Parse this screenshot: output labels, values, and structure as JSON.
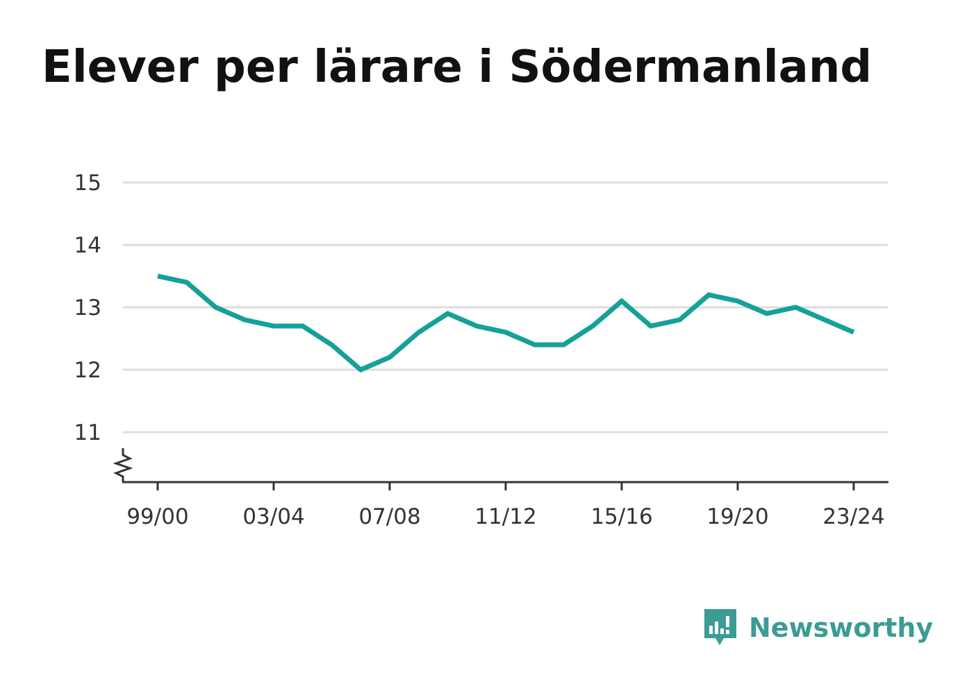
{
  "title": "Elever per lärare i Södermanland",
  "brand": {
    "name": "Newsworthy",
    "color": "#3c9b95"
  },
  "chart_data": {
    "type": "line",
    "title": "Elever per lärare i Södermanland",
    "xlabel": "",
    "ylabel": "",
    "ylim": [
      10.2,
      15
    ],
    "y_ticks": [
      11,
      12,
      13,
      14,
      15
    ],
    "x_tick_labels": [
      "99/00",
      "03/04",
      "07/08",
      "11/12",
      "15/16",
      "19/20",
      "23/24"
    ],
    "axis_break": true,
    "grid": true,
    "line_color": "#15a199",
    "series": [
      {
        "x": [
          "99/00",
          "00/01",
          "01/02",
          "02/03",
          "03/04",
          "04/05",
          "05/06",
          "06/07",
          "07/08",
          "08/09",
          "09/10",
          "10/11",
          "11/12",
          "12/13",
          "13/14",
          "14/15",
          "15/16",
          "16/17",
          "17/18",
          "18/19",
          "19/20",
          "20/21",
          "21/22",
          "22/23",
          "23/24"
        ],
        "values": [
          13.5,
          13.4,
          13.0,
          12.8,
          12.7,
          12.7,
          12.4,
          12.0,
          12.2,
          12.6,
          12.9,
          12.7,
          12.6,
          12.4,
          12.4,
          12.7,
          13.1,
          12.7,
          12.8,
          13.2,
          13.1,
          12.9,
          13.0,
          12.8,
          12.6
        ]
      }
    ]
  }
}
